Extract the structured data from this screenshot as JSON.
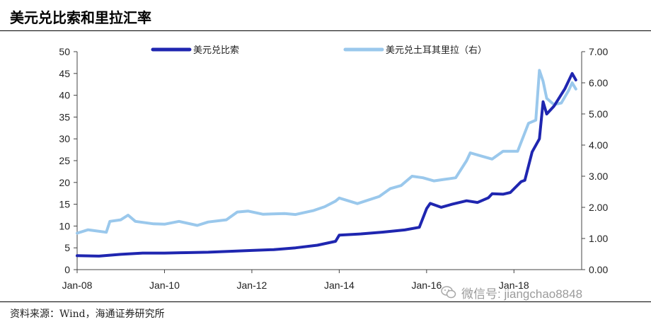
{
  "page": {
    "title": "美元兑比索和里拉汇率",
    "source": "资料来源：Wind，海通证券研究所",
    "watermark": "微信号: jiangchao8848"
  },
  "chart_data": {
    "type": "line",
    "title": "美元兑比索和里拉汇率",
    "x_tick_labels": [
      "Jan-08",
      "Jan-10",
      "Jan-12",
      "Jan-14",
      "Jan-16",
      "Jan-18"
    ],
    "y_left": {
      "lim": [
        0,
        50
      ],
      "ticks": [
        0,
        5,
        10,
        15,
        20,
        25,
        30,
        35,
        40,
        45,
        50
      ]
    },
    "y_right": {
      "lim": [
        0,
        7
      ],
      "ticks": [
        "0.00",
        "1.00",
        "2.00",
        "3.00",
        "4.00",
        "5.00",
        "6.00",
        "7.00"
      ]
    },
    "legend_position": "top",
    "grid": false,
    "series": [
      {
        "name": "美元兑比索",
        "axis": "left",
        "color": "#1f26b0",
        "points": [
          [
            "2008-01",
            3.2
          ],
          [
            "2008-07",
            3.1
          ],
          [
            "2009-01",
            3.5
          ],
          [
            "2009-07",
            3.8
          ],
          [
            "2010-01",
            3.8
          ],
          [
            "2010-07",
            3.9
          ],
          [
            "2011-01",
            4.0
          ],
          [
            "2011-07",
            4.2
          ],
          [
            "2012-01",
            4.4
          ],
          [
            "2012-07",
            4.6
          ],
          [
            "2013-01",
            5.0
          ],
          [
            "2013-07",
            5.6
          ],
          [
            "2013-12",
            6.5
          ],
          [
            "2014-01",
            7.9
          ],
          [
            "2014-07",
            8.2
          ],
          [
            "2015-01",
            8.6
          ],
          [
            "2015-07",
            9.1
          ],
          [
            "2015-11",
            9.7
          ],
          [
            "2016-01",
            14.0
          ],
          [
            "2016-02",
            15.2
          ],
          [
            "2016-05",
            14.3
          ],
          [
            "2016-08",
            15.0
          ],
          [
            "2016-12",
            15.8
          ],
          [
            "2017-03",
            15.4
          ],
          [
            "2017-06",
            16.5
          ],
          [
            "2017-07",
            17.4
          ],
          [
            "2017-10",
            17.3
          ],
          [
            "2017-12",
            17.7
          ],
          [
            "2018-03",
            20.2
          ],
          [
            "2018-04",
            20.5
          ],
          [
            "2018-06",
            27.0
          ],
          [
            "2018-08",
            30.0
          ],
          [
            "2018-09",
            38.5
          ],
          [
            "2018-10",
            35.7
          ],
          [
            "2018-12",
            37.5
          ],
          [
            "2019-03",
            41.5
          ],
          [
            "2019-05",
            45.0
          ],
          [
            "2019-06",
            43.5
          ]
        ]
      },
      {
        "name": "美元兑土耳其里拉（右）",
        "axis": "right",
        "color": "#9ac8ec",
        "points": [
          [
            "2008-01",
            1.17
          ],
          [
            "2008-04",
            1.28
          ],
          [
            "2008-09",
            1.2
          ],
          [
            "2008-10",
            1.55
          ],
          [
            "2009-01",
            1.6
          ],
          [
            "2009-03",
            1.75
          ],
          [
            "2009-05",
            1.55
          ],
          [
            "2009-10",
            1.47
          ],
          [
            "2010-01",
            1.46
          ],
          [
            "2010-05",
            1.55
          ],
          [
            "2010-10",
            1.42
          ],
          [
            "2011-01",
            1.53
          ],
          [
            "2011-06",
            1.6
          ],
          [
            "2011-09",
            1.85
          ],
          [
            "2011-12",
            1.88
          ],
          [
            "2012-04",
            1.78
          ],
          [
            "2012-10",
            1.8
          ],
          [
            "2013-01",
            1.77
          ],
          [
            "2013-06",
            1.9
          ],
          [
            "2013-09",
            2.02
          ],
          [
            "2013-12",
            2.2
          ],
          [
            "2014-01",
            2.3
          ],
          [
            "2014-06",
            2.12
          ],
          [
            "2014-12",
            2.35
          ],
          [
            "2015-03",
            2.6
          ],
          [
            "2015-06",
            2.7
          ],
          [
            "2015-09",
            3.0
          ],
          [
            "2015-12",
            2.95
          ],
          [
            "2016-03",
            2.85
          ],
          [
            "2016-06",
            2.9
          ],
          [
            "2016-09",
            2.95
          ],
          [
            "2016-12",
            3.5
          ],
          [
            "2017-01",
            3.75
          ],
          [
            "2017-04",
            3.65
          ],
          [
            "2017-07",
            3.55
          ],
          [
            "2017-10",
            3.8
          ],
          [
            "2017-12",
            3.8
          ],
          [
            "2018-02",
            3.8
          ],
          [
            "2018-05",
            4.7
          ],
          [
            "2018-07",
            4.8
          ],
          [
            "2018-08",
            6.4
          ],
          [
            "2018-09",
            6.05
          ],
          [
            "2018-10",
            5.5
          ],
          [
            "2018-12",
            5.3
          ],
          [
            "2019-02",
            5.35
          ],
          [
            "2019-04",
            5.75
          ],
          [
            "2019-05",
            6.0
          ],
          [
            "2019-06",
            5.8
          ]
        ]
      }
    ]
  }
}
